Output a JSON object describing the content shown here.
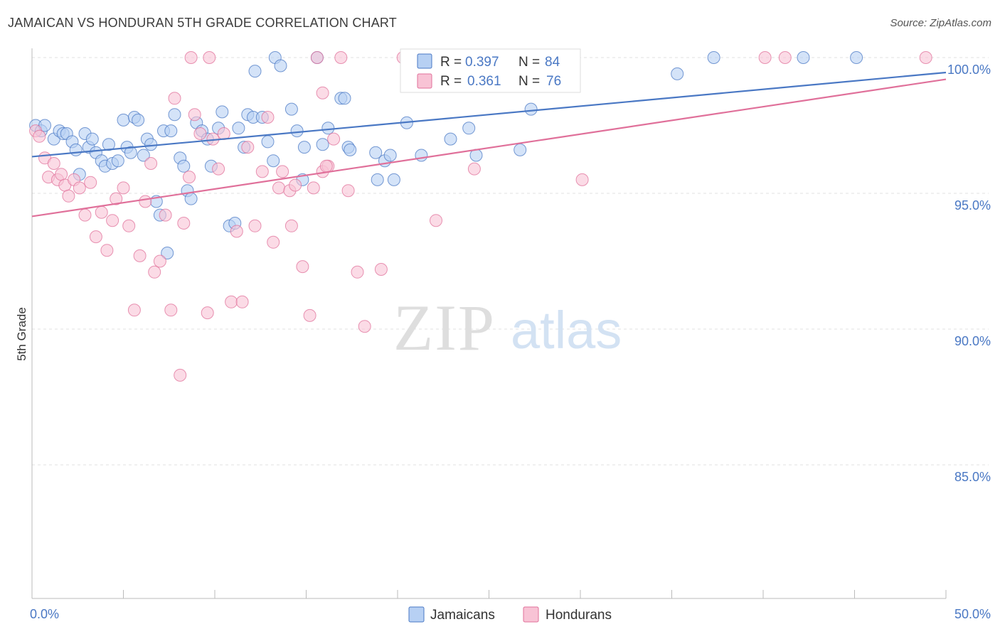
{
  "title": "JAMAICAN VS HONDURAN 5TH GRADE CORRELATION CHART",
  "source": "Source: ZipAtlas.com",
  "watermark": {
    "zip": "ZIP",
    "atlas": "atlas"
  },
  "legend": {
    "r_label": "R =",
    "n_label": "N =",
    "entries": [
      {
        "name": "Jamaicans",
        "r": "0.397",
        "n": "84",
        "color": "#4a78c4",
        "fill": "#b7d0f3"
      },
      {
        "name": "Hondurans",
        "r": "0.361",
        "n": "76",
        "color": "#e0709a",
        "fill": "#f8c3d5"
      }
    ]
  },
  "chart_data": {
    "type": "scatter",
    "title": "JAMAICAN VS HONDURAN 5TH GRADE CORRELATION CHART",
    "xlabel": "",
    "ylabel": "5th Grade",
    "xlim": [
      0,
      50
    ],
    "ylim": [
      80.5,
      100.8
    ],
    "x_tick_labels": [
      {
        "value": 0,
        "label": "0.0%"
      },
      {
        "value": 50,
        "label": "50.0%"
      }
    ],
    "y_tick_labels": [
      {
        "value": 100,
        "label": "100.0%"
      },
      {
        "value": 95,
        "label": "95.0%"
      },
      {
        "value": 90,
        "label": "90.0%"
      },
      {
        "value": 85,
        "label": "85.0%"
      }
    ],
    "x_minor_ticks": [
      5,
      10,
      15,
      20,
      25,
      30,
      35,
      40,
      45,
      50
    ],
    "series": [
      {
        "name": "Jamaicans",
        "color": "#4a78c4",
        "fill": "#b7d0f3",
        "trend": {
          "x": [
            0,
            50
          ],
          "y": [
            96.35,
            99.45
          ]
        },
        "points": [
          [
            0.2,
            97.5
          ],
          [
            0.5,
            97.3
          ],
          [
            0.7,
            97.5
          ],
          [
            1.2,
            97.0
          ],
          [
            1.5,
            97.3
          ],
          [
            1.7,
            97.2
          ],
          [
            1.9,
            97.2
          ],
          [
            2.2,
            96.9
          ],
          [
            2.4,
            96.6
          ],
          [
            2.6,
            95.7
          ],
          [
            2.9,
            97.2
          ],
          [
            3.1,
            96.7
          ],
          [
            3.3,
            97.0
          ],
          [
            3.5,
            96.5
          ],
          [
            3.8,
            96.2
          ],
          [
            4.0,
            96.0
          ],
          [
            4.2,
            96.8
          ],
          [
            4.4,
            96.1
          ],
          [
            4.7,
            96.2
          ],
          [
            5.0,
            97.7
          ],
          [
            5.2,
            96.7
          ],
          [
            5.4,
            96.5
          ],
          [
            5.6,
            97.8
          ],
          [
            5.8,
            97.7
          ],
          [
            6.1,
            96.4
          ],
          [
            6.3,
            97.0
          ],
          [
            6.5,
            96.8
          ],
          [
            6.8,
            94.7
          ],
          [
            7.0,
            94.2
          ],
          [
            7.2,
            97.3
          ],
          [
            7.4,
            92.8
          ],
          [
            7.6,
            97.3
          ],
          [
            7.8,
            97.9
          ],
          [
            8.1,
            96.3
          ],
          [
            8.3,
            96.0
          ],
          [
            8.5,
            95.1
          ],
          [
            8.7,
            94.8
          ],
          [
            9.0,
            97.6
          ],
          [
            9.3,
            97.3
          ],
          [
            9.6,
            97.0
          ],
          [
            9.8,
            96.0
          ],
          [
            10.2,
            97.4
          ],
          [
            10.4,
            98.0
          ],
          [
            10.8,
            93.8
          ],
          [
            11.1,
            93.9
          ],
          [
            11.3,
            97.4
          ],
          [
            11.6,
            96.7
          ],
          [
            11.8,
            97.9
          ],
          [
            12.1,
            97.8
          ],
          [
            12.2,
            99.5
          ],
          [
            12.6,
            97.8
          ],
          [
            12.9,
            96.9
          ],
          [
            13.2,
            96.2
          ],
          [
            13.3,
            100.0
          ],
          [
            13.6,
            99.7
          ],
          [
            14.2,
            98.1
          ],
          [
            14.5,
            97.3
          ],
          [
            14.8,
            95.5
          ],
          [
            14.9,
            96.7
          ],
          [
            15.6,
            100.0
          ],
          [
            15.9,
            96.8
          ],
          [
            16.2,
            97.4
          ],
          [
            16.9,
            98.5
          ],
          [
            17.3,
            96.7
          ],
          [
            17.4,
            96.6
          ],
          [
            18.8,
            96.5
          ],
          [
            18.9,
            95.5
          ],
          [
            19.3,
            96.2
          ],
          [
            19.6,
            96.4
          ],
          [
            19.8,
            95.5
          ],
          [
            20.5,
            97.6
          ],
          [
            21.3,
            96.4
          ],
          [
            22.9,
            97.0
          ],
          [
            23.9,
            97.4
          ],
          [
            24.3,
            96.4
          ],
          [
            26.6,
            100.0
          ],
          [
            26.7,
            96.6
          ],
          [
            27.3,
            98.1
          ],
          [
            35.3,
            99.4
          ],
          [
            37.3,
            100.0
          ],
          [
            42.2,
            100.0
          ],
          [
            45.1,
            100.0
          ],
          [
            17.1,
            98.5
          ],
          [
            20.8,
            100.0
          ]
        ]
      },
      {
        "name": "Hondurans",
        "color": "#e0709a",
        "fill": "#f8c3d5",
        "trend": {
          "x": [
            0,
            50
          ],
          "y": [
            94.15,
            99.2
          ]
        },
        "points": [
          [
            0.2,
            97.3
          ],
          [
            0.4,
            97.1
          ],
          [
            0.7,
            96.3
          ],
          [
            0.9,
            95.6
          ],
          [
            1.2,
            96.1
          ],
          [
            1.4,
            95.5
          ],
          [
            1.6,
            95.7
          ],
          [
            1.8,
            95.3
          ],
          [
            2.0,
            94.9
          ],
          [
            2.3,
            95.5
          ],
          [
            2.6,
            95.2
          ],
          [
            2.9,
            94.2
          ],
          [
            3.2,
            95.4
          ],
          [
            3.5,
            93.4
          ],
          [
            3.8,
            94.3
          ],
          [
            4.1,
            92.9
          ],
          [
            4.4,
            94.0
          ],
          [
            4.6,
            94.8
          ],
          [
            5.0,
            95.2
          ],
          [
            5.3,
            93.8
          ],
          [
            5.6,
            90.7
          ],
          [
            5.9,
            92.7
          ],
          [
            6.2,
            94.7
          ],
          [
            6.5,
            96.1
          ],
          [
            6.7,
            92.1
          ],
          [
            7.0,
            92.5
          ],
          [
            7.3,
            94.2
          ],
          [
            7.6,
            90.7
          ],
          [
            7.8,
            98.5
          ],
          [
            8.1,
            88.3
          ],
          [
            8.3,
            93.9
          ],
          [
            8.6,
            95.6
          ],
          [
            8.9,
            97.9
          ],
          [
            9.2,
            97.2
          ],
          [
            9.6,
            90.6
          ],
          [
            9.9,
            97.0
          ],
          [
            10.2,
            95.9
          ],
          [
            10.5,
            97.2
          ],
          [
            10.9,
            91.0
          ],
          [
            11.2,
            93.6
          ],
          [
            11.5,
            91.0
          ],
          [
            11.8,
            96.7
          ],
          [
            12.2,
            93.8
          ],
          [
            12.6,
            95.8
          ],
          [
            12.9,
            97.8
          ],
          [
            13.2,
            93.2
          ],
          [
            13.5,
            95.2
          ],
          [
            13.7,
            95.8
          ],
          [
            14.1,
            95.1
          ],
          [
            14.4,
            95.3
          ],
          [
            14.8,
            92.3
          ],
          [
            15.2,
            90.5
          ],
          [
            15.4,
            95.2
          ],
          [
            15.9,
            95.8
          ],
          [
            16.2,
            96.0
          ],
          [
            16.5,
            97.0
          ],
          [
            16.9,
            100.0
          ],
          [
            17.3,
            95.1
          ],
          [
            17.8,
            92.1
          ],
          [
            18.2,
            90.1
          ],
          [
            19.1,
            92.2
          ],
          [
            20.3,
            100.0
          ],
          [
            22.1,
            94.0
          ],
          [
            24.2,
            95.9
          ],
          [
            25.6,
            100.0
          ],
          [
            26.1,
            100.0
          ],
          [
            30.1,
            95.5
          ],
          [
            40.1,
            100.0
          ],
          [
            41.2,
            100.0
          ],
          [
            48.9,
            100.0
          ],
          [
            15.9,
            98.7
          ],
          [
            16.1,
            96.0
          ],
          [
            14.2,
            93.8
          ],
          [
            15.6,
            100.0
          ],
          [
            9.7,
            100.0
          ],
          [
            8.7,
            100.0
          ]
        ]
      }
    ]
  }
}
